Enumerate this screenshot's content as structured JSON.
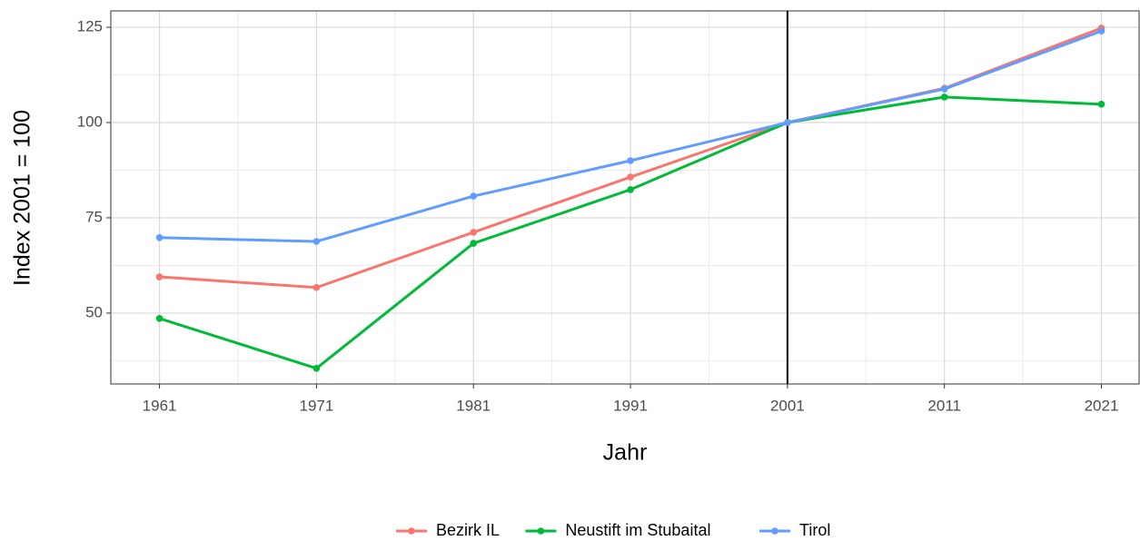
{
  "chart_data": {
    "type": "line",
    "x_label": "Jahr",
    "y_label": "Index 2001 = 100",
    "x": [
      1961,
      1971,
      1981,
      1991,
      2001,
      2011,
      2021
    ],
    "series": [
      {
        "name": "Bezirk IL",
        "color": "#F8766D",
        "values": [
          59.5,
          56.7,
          71.2,
          85.7,
          100,
          109.0,
          124.8
        ]
      },
      {
        "name": "Neustift im Stubaital",
        "color": "#00BA38",
        "values": [
          48.6,
          35.5,
          68.3,
          82.4,
          100,
          106.7,
          104.8
        ]
      },
      {
        "name": "Tirol",
        "color": "#619CFF",
        "values": [
          69.8,
          68.8,
          80.7,
          90.0,
          100,
          108.8,
          124.0
        ]
      }
    ],
    "xlim": [
      1957.9,
      2023.4
    ],
    "xticks": [
      1961,
      1971,
      1981,
      1991,
      2001,
      2011,
      2021
    ],
    "ylim": [
      31.4,
      129.3
    ],
    "yticks": [
      50,
      75,
      100,
      125
    ],
    "vline": 2001,
    "vline_color": "#000000",
    "grid": true,
    "legend": "bottom"
  }
}
